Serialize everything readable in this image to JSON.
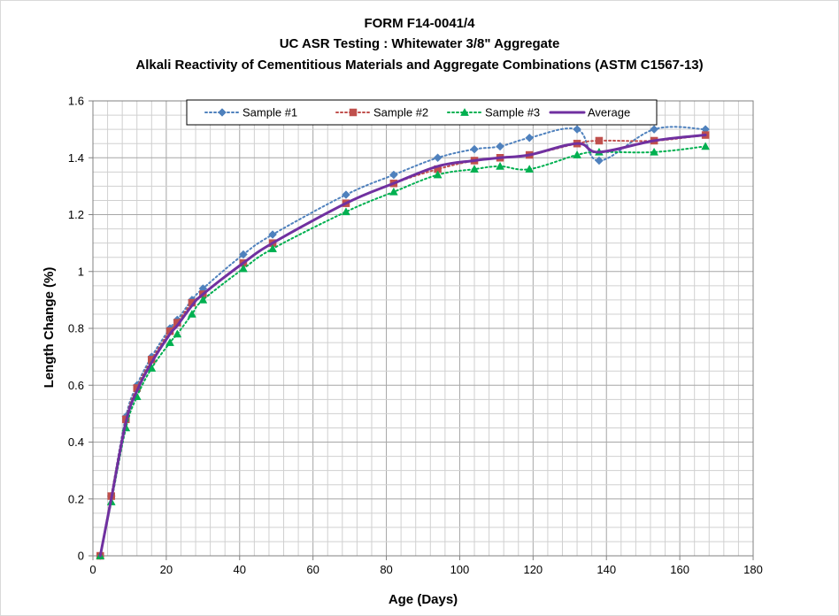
{
  "chart_data": {
    "type": "line",
    "title": [
      "FORM F14-0041/4",
      "UC ASR Testing : Whitewater 3/8\" Aggregate",
      "Alkali Reactivity of Cementitious Materials and Aggregate Combinations (ASTM C1567-13)"
    ],
    "xlabel": "Age (Days)",
    "ylabel": "Length Change (%)",
    "xlim": [
      0,
      180
    ],
    "ylim": [
      0,
      1.6
    ],
    "xticks": [
      "0",
      "20",
      "40",
      "60",
      "80",
      "100",
      "120",
      "140",
      "160",
      "180"
    ],
    "yticks": [
      "0",
      "0.2",
      "0.4",
      "0.6",
      "0.8",
      "1",
      "1.2",
      "1.4",
      "1.6"
    ],
    "grid": true,
    "legend_position": "top-inside",
    "series": [
      {
        "name": "Sample #1",
        "color": "#4F81BD",
        "marker": "diamond",
        "line": "dotted",
        "x": [
          2,
          5,
          9,
          12,
          16,
          21,
          23,
          27,
          30,
          41,
          49,
          69,
          82,
          94,
          104,
          111,
          119,
          132,
          138,
          153,
          167
        ],
        "y": [
          0,
          0.21,
          0.49,
          0.6,
          0.7,
          0.8,
          0.83,
          0.9,
          0.94,
          1.06,
          1.13,
          1.27,
          1.34,
          1.4,
          1.43,
          1.44,
          1.47,
          1.5,
          1.39,
          1.5,
          1.5
        ]
      },
      {
        "name": "Sample #2",
        "color": "#C0504D",
        "marker": "square",
        "line": "dotted",
        "x": [
          2,
          5,
          9,
          12,
          16,
          21,
          23,
          27,
          30,
          41,
          49,
          69,
          82,
          94,
          104,
          111,
          119,
          132,
          138,
          153,
          167
        ],
        "y": [
          0,
          0.21,
          0.48,
          0.59,
          0.69,
          0.79,
          0.82,
          0.89,
          0.92,
          1.03,
          1.1,
          1.24,
          1.31,
          1.36,
          1.39,
          1.4,
          1.41,
          1.45,
          1.46,
          1.46,
          1.48
        ]
      },
      {
        "name": "Sample #3",
        "color": "#00B050",
        "marker": "triangle",
        "line": "dotted",
        "x": [
          2,
          5,
          9,
          12,
          16,
          21,
          23,
          27,
          30,
          41,
          49,
          69,
          82,
          94,
          104,
          111,
          119,
          132,
          138,
          153,
          167
        ],
        "y": [
          0,
          0.19,
          0.45,
          0.56,
          0.66,
          0.75,
          0.78,
          0.85,
          0.9,
          1.01,
          1.08,
          1.21,
          1.28,
          1.34,
          1.36,
          1.37,
          1.36,
          1.41,
          1.42,
          1.42,
          1.44
        ]
      },
      {
        "name": "Average",
        "color": "#7030A0",
        "marker": "none",
        "line": "solid",
        "x": [
          2,
          5,
          9,
          12,
          16,
          21,
          23,
          27,
          30,
          41,
          49,
          69,
          82,
          94,
          104,
          111,
          119,
          132,
          138,
          153,
          167
        ],
        "y": [
          0,
          0.2,
          0.47,
          0.58,
          0.68,
          0.78,
          0.81,
          0.88,
          0.92,
          1.03,
          1.1,
          1.24,
          1.31,
          1.37,
          1.39,
          1.4,
          1.41,
          1.45,
          1.42,
          1.46,
          1.48
        ]
      }
    ]
  }
}
